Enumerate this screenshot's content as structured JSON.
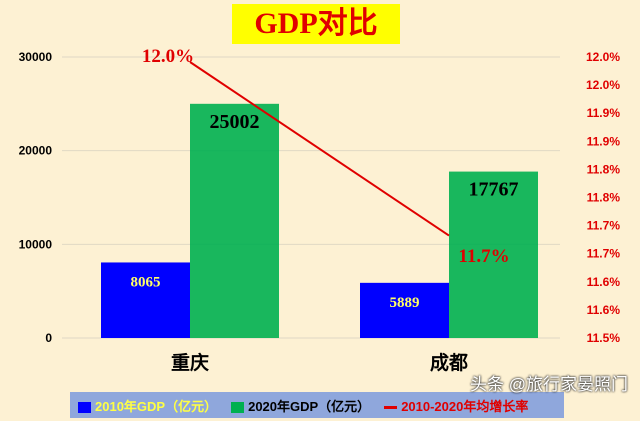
{
  "chart_data": {
    "type": "bar",
    "title": "GDP对比",
    "categories": [
      "重庆",
      "成都"
    ],
    "series": [
      {
        "name": "2010年GDP（亿元）",
        "values": [
          8065,
          5889
        ],
        "color": "#0000ff",
        "label_color": "#ffff66"
      },
      {
        "name": "2020年GDP（亿元）",
        "values": [
          25002,
          17767
        ],
        "color": "#00b050",
        "label_color": "#000000"
      },
      {
        "name": "2010-2020年均增长率",
        "type": "line",
        "axis": "right",
        "values": [
          12.0,
          11.7
        ],
        "labels": [
          "12.0%",
          "11.7%"
        ],
        "color": "#e00000"
      }
    ],
    "y_left": {
      "range": [
        0,
        30000
      ],
      "ticks": [
        "0",
        "10000",
        "20000",
        "30000"
      ]
    },
    "y_right": {
      "range": [
        11.5,
        12.0
      ],
      "ticks": [
        "11.5%",
        "11.6%",
        "11.6%",
        "11.7%",
        "11.7%",
        "11.8%",
        "11.8%",
        "11.9%",
        "11.9%",
        "12.0%",
        "12.0%"
      ]
    },
    "grid": true,
    "legend": "bottom"
  },
  "watermark": "头条 @旅行家晏照门"
}
